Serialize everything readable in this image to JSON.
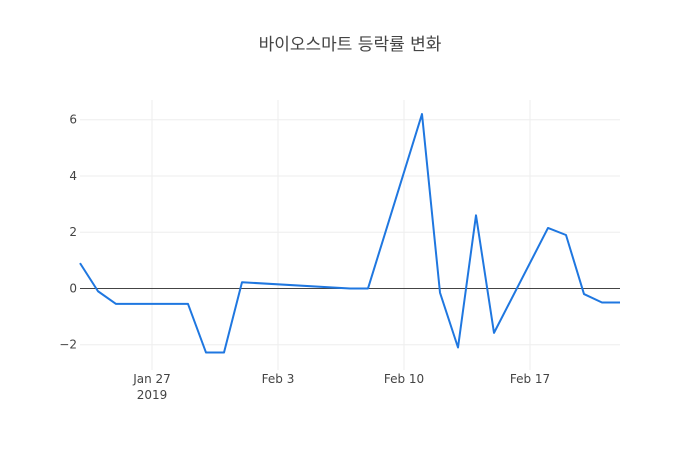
{
  "chart_data": {
    "type": "line",
    "title": "바이오스마트 등락률 변화",
    "x": [
      "2019-01-23",
      "2019-01-24",
      "2019-01-25",
      "2019-01-28",
      "2019-01-29",
      "2019-01-30",
      "2019-01-31",
      "2019-02-01",
      "2019-02-07",
      "2019-02-08",
      "2019-02-11",
      "2019-02-12",
      "2019-02-13",
      "2019-02-14",
      "2019-02-15",
      "2019-02-18",
      "2019-02-19",
      "2019-02-20",
      "2019-02-21",
      "2019-02-22"
    ],
    "values": [
      0.9,
      -0.1,
      -0.55,
      -0.55,
      -0.55,
      -2.28,
      -2.28,
      0.22,
      0.0,
      0.0,
      6.2,
      -0.15,
      -2.1,
      2.6,
      -1.58,
      2.15,
      1.9,
      -0.2,
      -0.5,
      -0.5
    ],
    "xaxis": {
      "range": [
        "2019-01-23",
        "2019-02-22"
      ],
      "ticks": [
        {
          "date": "2019-01-27",
          "label": "Jan 27",
          "sublabel": "2019"
        },
        {
          "date": "2019-02-03",
          "label": "Feb 3",
          "sublabel": ""
        },
        {
          "date": "2019-02-10",
          "label": "Feb 10",
          "sublabel": ""
        },
        {
          "date": "2019-02-17",
          "label": "Feb 17",
          "sublabel": ""
        }
      ]
    },
    "yaxis": {
      "range": [
        -2.9,
        6.7
      ],
      "ticks": [
        {
          "value": -2,
          "label": "−2"
        },
        {
          "value": 0,
          "label": "0"
        },
        {
          "value": 2,
          "label": "2"
        },
        {
          "value": 4,
          "label": "4"
        },
        {
          "value": 6,
          "label": "6"
        }
      ],
      "zeroline": true
    },
    "grid": true,
    "line_color": "#1f77e0",
    "grid_color": "#eeeeee",
    "zeroline_color": "#444444"
  }
}
